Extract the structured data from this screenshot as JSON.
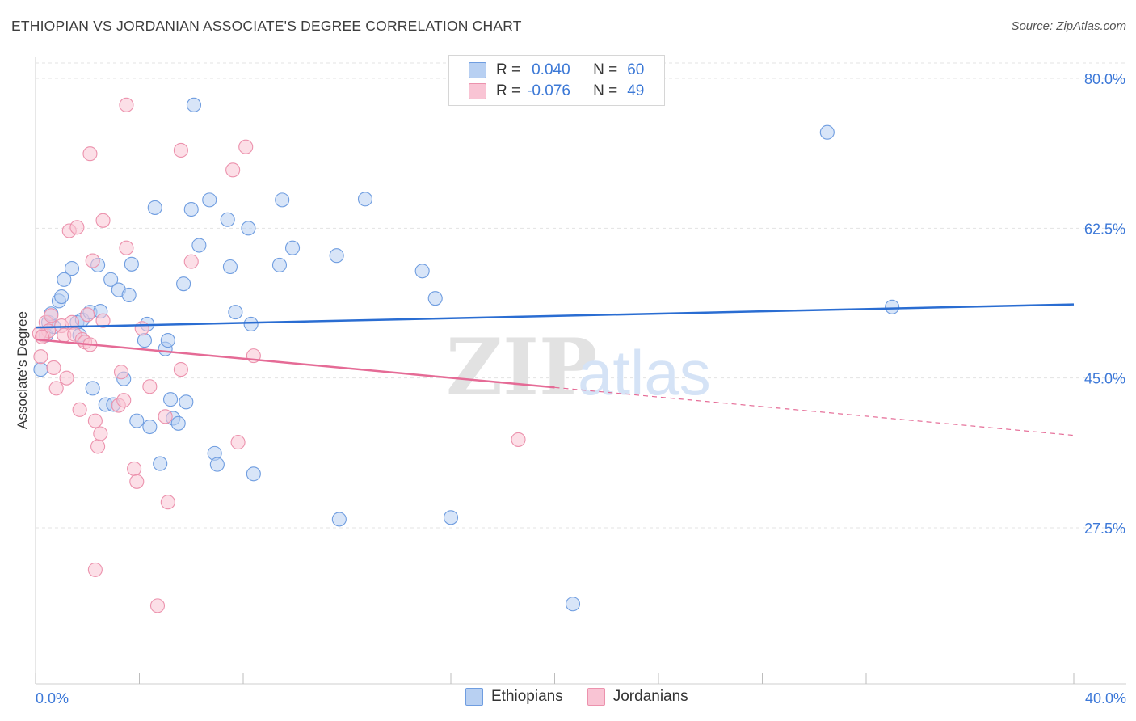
{
  "title": "ETHIOPIAN VS JORDANIAN ASSOCIATE'S DEGREE CORRELATION CHART",
  "source": "Source: ZipAtlas.com",
  "watermark": {
    "zip": "ZIP",
    "atlas": "atlas"
  },
  "colors": {
    "ethiopians": "#6f9de0",
    "ethiopians_fill": "#b8d0f2",
    "jordanians": "#ec92ad",
    "jordanians_fill": "#f9c4d4",
    "blue_line": "#2a6dd2",
    "pink_line": "#e56b96",
    "tick": "#3c78d8"
  },
  "legend": {
    "rows": [
      {
        "r_label": "R =",
        "r_value": "0.040",
        "n_label": "N =",
        "n_value": "60"
      },
      {
        "r_label": "R =",
        "r_value": "-0.076",
        "n_label": "N =",
        "n_value": "49"
      }
    ],
    "series_names": [
      "Ethiopians",
      "Jordanians"
    ]
  },
  "chart_data": {
    "type": "scatter",
    "title": "ETHIOPIAN VS JORDANIAN ASSOCIATE'S DEGREE CORRELATION CHART",
    "xlabel": "",
    "ylabel": "Associate's Degree",
    "xlim": [
      0,
      40
    ],
    "ylim": [
      10,
      83
    ],
    "x_tick_labels": [
      "0.0%",
      "40.0%"
    ],
    "y_ticks": [
      80,
      62.5,
      45,
      27.5
    ],
    "y_tick_labels": [
      "80.0%",
      "62.5%",
      "45.0%",
      "27.5%"
    ],
    "grid": true,
    "series": [
      {
        "name": "Ethiopians",
        "points": [
          [
            0.2,
            46.0
          ],
          [
            0.4,
            50.0
          ],
          [
            0.5,
            51.5
          ],
          [
            0.6,
            52.5
          ],
          [
            0.7,
            51.0
          ],
          [
            0.9,
            54.0
          ],
          [
            1.0,
            54.5
          ],
          [
            1.1,
            56.5
          ],
          [
            1.4,
            57.8
          ],
          [
            1.6,
            51.5
          ],
          [
            1.7,
            50.0
          ],
          [
            1.8,
            51.8
          ],
          [
            2.1,
            52.7
          ],
          [
            2.2,
            43.8
          ],
          [
            2.4,
            58.2
          ],
          [
            2.5,
            52.8
          ],
          [
            2.7,
            41.9
          ],
          [
            2.9,
            56.5
          ],
          [
            3.0,
            41.9
          ],
          [
            3.2,
            55.3
          ],
          [
            3.4,
            44.9
          ],
          [
            3.6,
            54.7
          ],
          [
            3.7,
            58.3
          ],
          [
            3.9,
            40.0
          ],
          [
            4.2,
            49.4
          ],
          [
            4.3,
            51.3
          ],
          [
            4.4,
            39.3
          ],
          [
            4.6,
            64.9
          ],
          [
            4.8,
            35.0
          ],
          [
            5.0,
            48.4
          ],
          [
            5.1,
            49.4
          ],
          [
            5.2,
            42.5
          ],
          [
            5.3,
            40.3
          ],
          [
            5.5,
            39.7
          ],
          [
            5.7,
            56.0
          ],
          [
            5.8,
            42.2
          ],
          [
            6.0,
            64.7
          ],
          [
            6.1,
            76.9
          ],
          [
            6.3,
            60.5
          ],
          [
            6.7,
            65.8
          ],
          [
            6.9,
            36.2
          ],
          [
            7.0,
            34.9
          ],
          [
            7.4,
            63.5
          ],
          [
            7.5,
            58.0
          ],
          [
            7.7,
            52.7
          ],
          [
            8.2,
            62.5
          ],
          [
            8.3,
            51.3
          ],
          [
            8.4,
            33.8
          ],
          [
            9.4,
            58.2
          ],
          [
            9.5,
            65.8
          ],
          [
            9.9,
            60.2
          ],
          [
            11.6,
            59.3
          ],
          [
            11.7,
            28.5
          ],
          [
            12.7,
            65.9
          ],
          [
            14.9,
            57.5
          ],
          [
            15.4,
            54.3
          ],
          [
            16.0,
            28.7
          ],
          [
            20.7,
            18.6
          ],
          [
            30.5,
            73.7
          ],
          [
            33.0,
            53.3
          ]
        ]
      },
      {
        "name": "Jordanians",
        "points": [
          [
            0.2,
            47.5
          ],
          [
            0.3,
            50.0
          ],
          [
            0.4,
            51.5
          ],
          [
            0.5,
            50.5
          ],
          [
            0.6,
            52.3
          ],
          [
            0.7,
            46.2
          ],
          [
            0.8,
            43.8
          ],
          [
            1.0,
            51.1
          ],
          [
            1.1,
            50.0
          ],
          [
            1.2,
            45.0
          ],
          [
            1.3,
            62.2
          ],
          [
            1.4,
            51.5
          ],
          [
            1.5,
            50.1
          ],
          [
            1.6,
            62.6
          ],
          [
            1.7,
            41.3
          ],
          [
            1.8,
            49.5
          ],
          [
            1.9,
            49.2
          ],
          [
            2.0,
            52.4
          ],
          [
            2.1,
            48.9
          ],
          [
            2.2,
            58.7
          ],
          [
            2.1,
            71.2
          ],
          [
            2.3,
            22.6
          ],
          [
            2.3,
            40.0
          ],
          [
            2.4,
            37.0
          ],
          [
            2.5,
            38.5
          ],
          [
            2.6,
            51.7
          ],
          [
            2.6,
            63.4
          ],
          [
            3.2,
            41.8
          ],
          [
            3.3,
            45.7
          ],
          [
            3.4,
            42.4
          ],
          [
            3.5,
            60.2
          ],
          [
            3.5,
            76.9
          ],
          [
            3.8,
            34.4
          ],
          [
            3.9,
            32.9
          ],
          [
            4.1,
            50.8
          ],
          [
            4.4,
            44.0
          ],
          [
            4.7,
            18.4
          ],
          [
            5.0,
            40.5
          ],
          [
            5.1,
            30.5
          ],
          [
            5.6,
            71.6
          ],
          [
            5.6,
            46.0
          ],
          [
            6.0,
            58.6
          ],
          [
            7.6,
            69.3
          ],
          [
            7.8,
            37.5
          ],
          [
            8.1,
            72.0
          ],
          [
            8.4,
            47.6
          ],
          [
            18.6,
            37.8
          ],
          [
            0.15,
            50.2
          ],
          [
            0.25,
            49.8
          ]
        ]
      }
    ],
    "trend_lines": [
      {
        "name": "Ethiopians",
        "x": [
          0,
          40
        ],
        "y": [
          50.9,
          53.6
        ]
      },
      {
        "name": "Jordanians",
        "x": [
          0,
          20
        ],
        "y": [
          49.5,
          43.9
        ],
        "dashed_extension": {
          "x": [
            20,
            40
          ],
          "y": [
            43.9,
            38.3
          ]
        }
      }
    ]
  }
}
